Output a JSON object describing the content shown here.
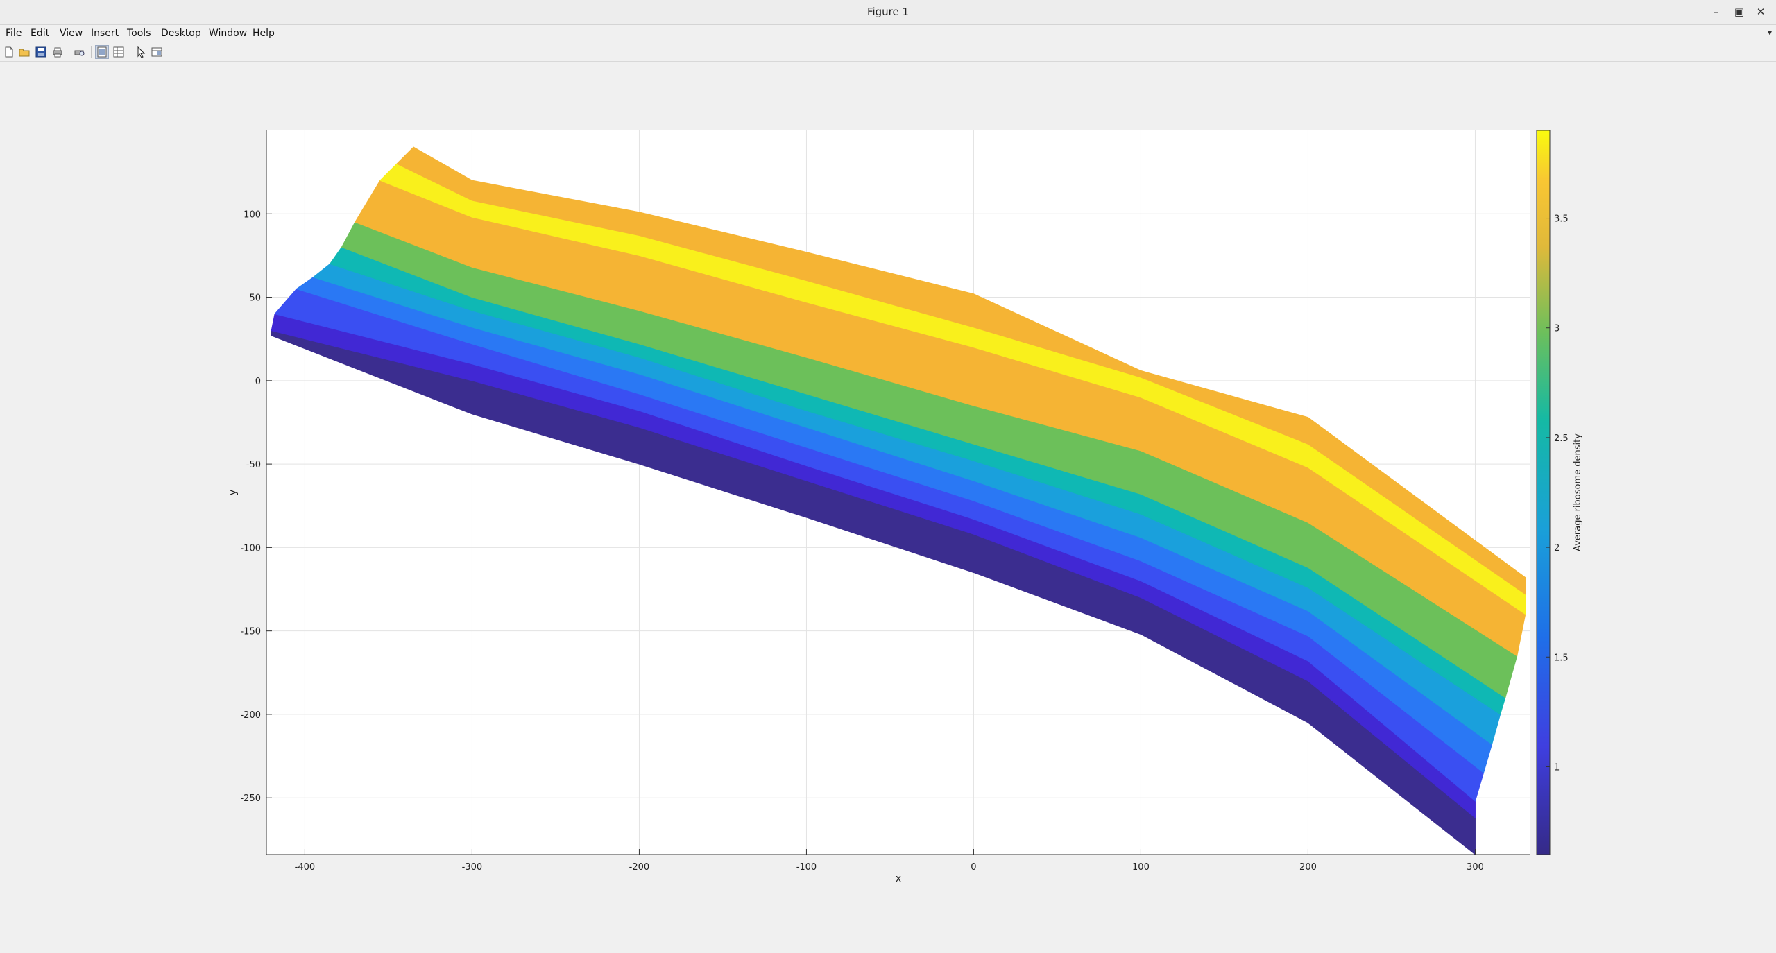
{
  "window": {
    "title": "Figure 1"
  },
  "menu": [
    "File",
    "Edit",
    "View",
    "Insert",
    "Tools",
    "Desktop",
    "Window",
    "Help"
  ],
  "toolbar": [
    "new-figure-icon",
    "open-file-icon",
    "save-icon",
    "print-icon",
    "print-preview-icon",
    "hide-plot-tools-icon",
    "show-plot-tools-icon",
    "edit-plot-arrow-icon",
    "property-editor-icon"
  ],
  "chart_data": {
    "type": "scatter",
    "title": "",
    "xlabel": "x",
    "ylabel": "y",
    "xlim": [
      -423,
      333
    ],
    "ylim": [
      -284,
      150
    ],
    "xticks": [
      -400,
      -300,
      -200,
      -100,
      0,
      100,
      200,
      300
    ],
    "yticks": [
      -250,
      -200,
      -150,
      -100,
      -50,
      0,
      50,
      100
    ],
    "grid": true,
    "colorbar": {
      "label": "Average ribosome density",
      "lim": [
        0.6,
        3.9
      ],
      "ticks": [
        "1",
        "1.5",
        "2",
        "2.5",
        "3",
        "3.5"
      ],
      "tick_values": [
        1,
        1.5,
        2,
        2.5,
        3,
        3.5
      ],
      "colormap": "parula"
    },
    "bands": [
      {
        "id": 0,
        "value": 0.65,
        "color": "#3b2d8f",
        "lower": [
          [
            -420,
            27
          ],
          [
            -300,
            -20
          ],
          [
            -200,
            -50
          ],
          [
            -100,
            -82
          ],
          [
            0,
            -115
          ],
          [
            100,
            -152
          ],
          [
            200,
            -205
          ],
          [
            300,
            -284
          ]
        ],
        "upper": [
          [
            -420,
            30
          ],
          [
            -300,
            0
          ],
          [
            -200,
            -28
          ],
          [
            -100,
            -60
          ],
          [
            0,
            -92
          ],
          [
            100,
            -130
          ],
          [
            200,
            -180
          ],
          [
            300,
            -262
          ]
        ]
      },
      {
        "id": 1,
        "value": 0.8,
        "color": "#4128d4",
        "lower": [
          [
            -420,
            30
          ],
          [
            -300,
            0
          ],
          [
            -200,
            -28
          ],
          [
            -100,
            -60
          ],
          [
            0,
            -92
          ],
          [
            100,
            -130
          ],
          [
            200,
            -180
          ],
          [
            300,
            -262
          ]
        ],
        "upper": [
          [
            -418,
            40
          ],
          [
            -300,
            10
          ],
          [
            -200,
            -18
          ],
          [
            -100,
            -51
          ],
          [
            0,
            -83
          ],
          [
            100,
            -120
          ],
          [
            200,
            -168
          ],
          [
            300,
            -252
          ]
        ]
      },
      {
        "id": 2,
        "value": 1.2,
        "color": "#3a4ff2",
        "lower": [
          [
            -418,
            40
          ],
          [
            -300,
            10
          ],
          [
            -200,
            -18
          ],
          [
            -100,
            -51
          ],
          [
            0,
            -83
          ],
          [
            100,
            -120
          ],
          [
            200,
            -168
          ],
          [
            300,
            -252
          ]
        ],
        "upper": [
          [
            -405,
            55
          ],
          [
            -300,
            22
          ],
          [
            -200,
            -8
          ],
          [
            -100,
            -40
          ],
          [
            0,
            -72
          ],
          [
            100,
            -108
          ],
          [
            200,
            -153
          ],
          [
            305,
            -235
          ]
        ]
      },
      {
        "id": 3,
        "value": 1.5,
        "color": "#2a78f4",
        "lower": [
          [
            -405,
            55
          ],
          [
            -300,
            22
          ],
          [
            -200,
            -8
          ],
          [
            -100,
            -40
          ],
          [
            0,
            -72
          ],
          [
            100,
            -108
          ],
          [
            200,
            -153
          ],
          [
            305,
            -235
          ]
        ],
        "upper": [
          [
            -395,
            62
          ],
          [
            -300,
            32
          ],
          [
            -200,
            4
          ],
          [
            -100,
            -28
          ],
          [
            0,
            -60
          ],
          [
            100,
            -94
          ],
          [
            200,
            -138
          ],
          [
            310,
            -218
          ]
        ]
      },
      {
        "id": 4,
        "value": 1.9,
        "color": "#1aa0dc",
        "lower": [
          [
            -395,
            62
          ],
          [
            -300,
            32
          ],
          [
            -200,
            4
          ],
          [
            -100,
            -28
          ],
          [
            0,
            -60
          ],
          [
            100,
            -94
          ],
          [
            200,
            -138
          ],
          [
            310,
            -218
          ]
        ],
        "upper": [
          [
            -385,
            70
          ],
          [
            -300,
            42
          ],
          [
            -200,
            14
          ],
          [
            -100,
            -18
          ],
          [
            0,
            -48
          ],
          [
            100,
            -80
          ],
          [
            200,
            -124
          ],
          [
            315,
            -200
          ]
        ]
      },
      {
        "id": 5,
        "value": 2.3,
        "color": "#0fb8b4",
        "lower": [
          [
            -385,
            70
          ],
          [
            -300,
            42
          ],
          [
            -200,
            14
          ],
          [
            -100,
            -18
          ],
          [
            0,
            -48
          ],
          [
            100,
            -80
          ],
          [
            200,
            -124
          ],
          [
            315,
            -200
          ]
        ],
        "upper": [
          [
            -378,
            80
          ],
          [
            -300,
            50
          ],
          [
            -200,
            22
          ],
          [
            -100,
            -8
          ],
          [
            0,
            -38
          ],
          [
            100,
            -68
          ],
          [
            200,
            -112
          ],
          [
            318,
            -190
          ]
        ]
      },
      {
        "id": 6,
        "value": 2.8,
        "color": "#6cc05a",
        "lower": [
          [
            -378,
            80
          ],
          [
            -300,
            50
          ],
          [
            -200,
            22
          ],
          [
            -100,
            -8
          ],
          [
            0,
            -38
          ],
          [
            100,
            -68
          ],
          [
            200,
            -112
          ],
          [
            318,
            -190
          ]
        ],
        "upper": [
          [
            -370,
            95
          ],
          [
            -300,
            68
          ],
          [
            -200,
            42
          ],
          [
            -100,
            14
          ],
          [
            0,
            -15
          ],
          [
            100,
            -42
          ],
          [
            200,
            -85
          ],
          [
            325,
            -165
          ]
        ]
      },
      {
        "id": 7,
        "value": 3.3,
        "color": "#f5b434",
        "lower": [
          [
            -370,
            95
          ],
          [
            -300,
            68
          ],
          [
            -200,
            42
          ],
          [
            -100,
            14
          ],
          [
            0,
            -15
          ],
          [
            100,
            -42
          ],
          [
            200,
            -85
          ],
          [
            325,
            -165
          ]
        ],
        "upper": [
          [
            -355,
            120
          ],
          [
            -300,
            98
          ],
          [
            -200,
            75
          ],
          [
            -100,
            47
          ],
          [
            0,
            20
          ],
          [
            100,
            -10
          ],
          [
            200,
            -52
          ],
          [
            330,
            -140
          ]
        ]
      },
      {
        "id": 8,
        "value": 3.85,
        "color": "#f9f01c",
        "lower": [
          [
            -355,
            120
          ],
          [
            -300,
            98
          ],
          [
            -200,
            75
          ],
          [
            -100,
            47
          ],
          [
            0,
            20
          ],
          [
            100,
            -10
          ],
          [
            200,
            -52
          ],
          [
            330,
            -140
          ]
        ],
        "upper": [
          [
            -345,
            130
          ],
          [
            -300,
            108
          ],
          [
            -200,
            87
          ],
          [
            -100,
            60
          ],
          [
            0,
            32
          ],
          [
            100,
            2
          ],
          [
            200,
            -38
          ],
          [
            330,
            -128
          ]
        ]
      },
      {
        "id": 9,
        "value": 3.3,
        "color": "#f5b434",
        "lower": [
          [
            -345,
            130
          ],
          [
            -300,
            108
          ],
          [
            -200,
            87
          ],
          [
            -100,
            60
          ],
          [
            0,
            32
          ],
          [
            100,
            2
          ],
          [
            200,
            -38
          ],
          [
            330,
            -128
          ]
        ],
        "upper": [
          [
            -335,
            140
          ],
          [
            -300,
            120
          ],
          [
            -200,
            101
          ],
          [
            -100,
            77
          ],
          [
            0,
            52
          ],
          [
            100,
            6
          ],
          [
            200,
            -22
          ],
          [
            330,
            -118
          ]
        ]
      }
    ]
  }
}
